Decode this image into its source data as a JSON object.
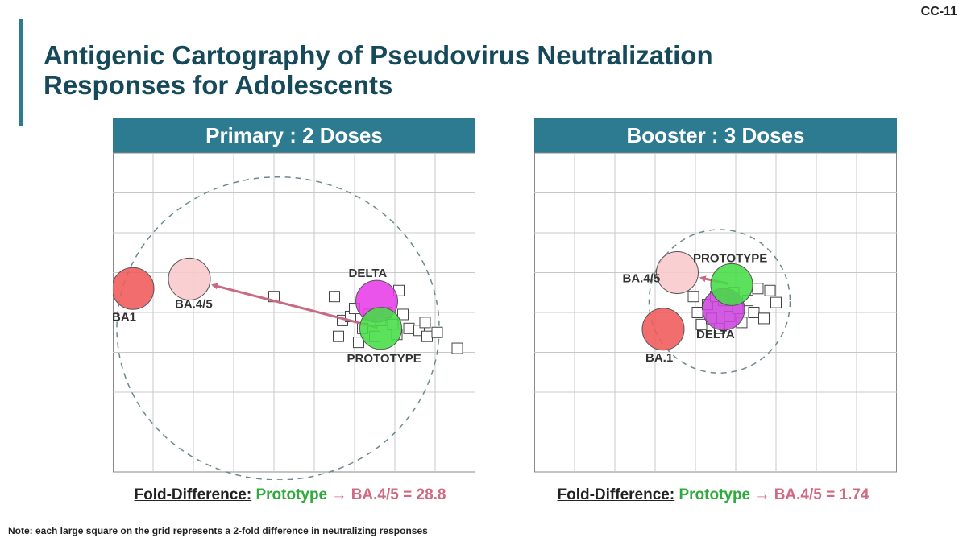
{
  "slide_id": "CC-11",
  "title_line1": "Antigenic Cartography of Pseudovirus Neutralization",
  "title_line2": "Responses for Adolescents",
  "note": "Note: each large square on the grid represents a 2-fold difference in neutralizing responses",
  "colors": {
    "accent": "#2d7b91",
    "title": "#164a5a",
    "prototype": "#2faa3c",
    "target": "#d06a82"
  },
  "chart_data": [
    {
      "type": "scatter",
      "title": "Primary : 2 Doses",
      "grid": true,
      "xlim": [
        0,
        9
      ],
      "ylim": [
        0,
        8
      ],
      "antigens": [
        {
          "name": "BA1",
          "label": "BA1",
          "x": 0.5,
          "y": 4.6,
          "color": "#f05a5a"
        },
        {
          "name": "BA.4/5",
          "label": "BA.4/5",
          "x": 1.9,
          "y": 4.84,
          "color": "#f9c8cc"
        },
        {
          "name": "DELTA",
          "label": "DELTA",
          "x": 6.55,
          "y": 4.28,
          "color": "#e83ce8"
        },
        {
          "name": "PROTOTYPE",
          "label": "PROTOTYPE",
          "x": 6.65,
          "y": 3.6,
          "color": "#44dd44"
        }
      ],
      "sera": [
        [
          4.0,
          4.4
        ],
        [
          5.5,
          4.4
        ],
        [
          5.7,
          3.8
        ],
        [
          5.6,
          3.4
        ],
        [
          5.9,
          3.9
        ],
        [
          6.0,
          4.1
        ],
        [
          6.2,
          3.6
        ],
        [
          6.1,
          3.25
        ],
        [
          6.35,
          3.95
        ],
        [
          6.5,
          3.4
        ],
        [
          6.65,
          3.8
        ],
        [
          6.8,
          4.0
        ],
        [
          6.95,
          3.7
        ],
        [
          7.05,
          3.45
        ],
        [
          7.1,
          4.55
        ],
        [
          7.2,
          3.95
        ],
        [
          7.35,
          3.6
        ],
        [
          7.6,
          3.55
        ],
        [
          7.75,
          3.75
        ],
        [
          7.8,
          3.4
        ],
        [
          8.05,
          3.5
        ],
        [
          8.55,
          3.1
        ]
      ],
      "arrow": {
        "from": "PROTOTYPE",
        "to": "BA.4/5"
      },
      "ellipse": {
        "cx": 4.1,
        "cy": 3.6,
        "rx": 4.0,
        "ry": 3.8
      },
      "fold_difference": {
        "label": "Fold-Difference:",
        "from": "Prototype",
        "arrow": "→",
        "to": "BA.4/5",
        "value": "28.8"
      }
    },
    {
      "type": "scatter",
      "title": "Booster : 3 Doses",
      "grid": true,
      "xlim": [
        0,
        9
      ],
      "ylim": [
        0,
        8
      ],
      "antigens": [
        {
          "name": "BA.1",
          "label": "BA.1",
          "x": 3.2,
          "y": 3.58,
          "color": "#f05a5a"
        },
        {
          "name": "BA.4/5",
          "label": "BA.4/5",
          "x": 3.55,
          "y": 5.0,
          "color": "#f9c8cc"
        },
        {
          "name": "PROTOTYPE",
          "label": "PROTOTYPE",
          "x": 4.9,
          "y": 4.7,
          "color": "#44dd44"
        },
        {
          "name": "DELTA",
          "label": "DELTA",
          "x": 4.7,
          "y": 4.08,
          "color": "#cc44dd"
        }
      ],
      "sera": [
        [
          3.95,
          4.4
        ],
        [
          4.05,
          4.0
        ],
        [
          4.15,
          3.7
        ],
        [
          4.3,
          4.2
        ],
        [
          4.4,
          3.85
        ],
        [
          4.5,
          4.4
        ],
        [
          4.6,
          3.6
        ],
        [
          4.7,
          4.3
        ],
        [
          4.85,
          3.9
        ],
        [
          4.95,
          4.5
        ],
        [
          5.05,
          4.1
        ],
        [
          5.15,
          3.75
        ],
        [
          5.3,
          4.3
        ],
        [
          5.45,
          4.0
        ],
        [
          5.55,
          4.6
        ],
        [
          5.7,
          3.85
        ],
        [
          5.85,
          4.55
        ],
        [
          6.0,
          4.25
        ]
      ],
      "arrow": {
        "from": "PROTOTYPE",
        "to": "BA.4/5"
      },
      "ellipse": {
        "cx": 4.6,
        "cy": 4.28,
        "rx": 1.75,
        "ry": 1.8
      },
      "fold_difference": {
        "label": "Fold-Difference:",
        "from": "Prototype",
        "arrow": "→",
        "to": "BA.4/5",
        "value": "1.74"
      }
    }
  ]
}
